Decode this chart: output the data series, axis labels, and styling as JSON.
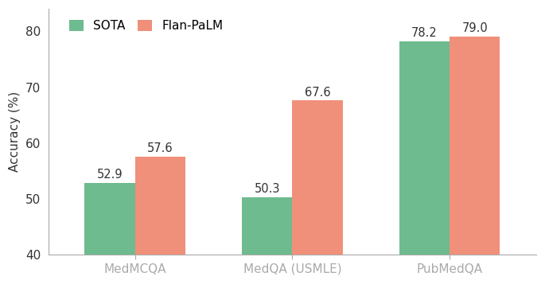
{
  "categories": [
    "MedMCQA",
    "MedQA (USMLE)",
    "PubMedQA"
  ],
  "sota_values": [
    52.9,
    50.3,
    78.2
  ],
  "flanpalm_values": [
    57.6,
    67.6,
    79.0
  ],
  "sota_color": "#6dbb8e",
  "flanpalm_color": "#f0907a",
  "legend_labels": [
    "SOTA",
    "Flan-PaLM"
  ],
  "ylabel": "Accuracy (%)",
  "ylim": [
    40,
    84
  ],
  "yticks": [
    40,
    50,
    60,
    70,
    80
  ],
  "bar_width": 0.32,
  "label_fontsize": 11,
  "tick_fontsize": 11,
  "legend_fontsize": 11,
  "annotation_fontsize": 10.5,
  "background_color": "#ffffff",
  "spine_color": "#aaaaaa"
}
